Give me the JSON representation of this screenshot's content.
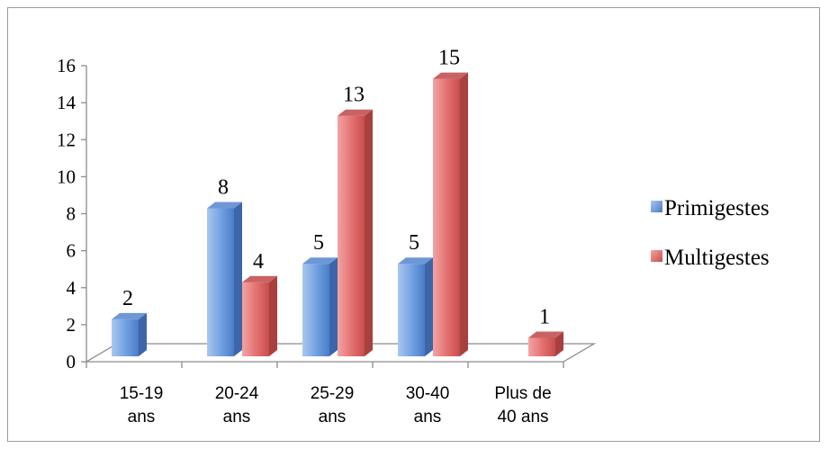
{
  "chart_data": {
    "type": "bar",
    "title": "",
    "xlabel": "",
    "ylabel": "",
    "categories": [
      [
        "15-19",
        "ans"
      ],
      [
        "20-24",
        "ans"
      ],
      [
        "25-29",
        "ans"
      ],
      [
        "30-40",
        "ans"
      ],
      [
        "Plus de",
        "40 ans"
      ]
    ],
    "series": [
      {
        "name": "Primigestes",
        "values": [
          2,
          8,
          5,
          5,
          null
        ],
        "color": "#4f81bd"
      },
      {
        "name": "Multigestes",
        "values": [
          null,
          4,
          13,
          15,
          1
        ],
        "color": "#c0504d"
      }
    ],
    "ylim": [
      0,
      16
    ],
    "yticks": [
      0,
      2,
      4,
      6,
      8,
      10,
      12,
      14,
      16
    ],
    "grid": false,
    "legend_position": "right",
    "style": "3d-clustered-column"
  }
}
